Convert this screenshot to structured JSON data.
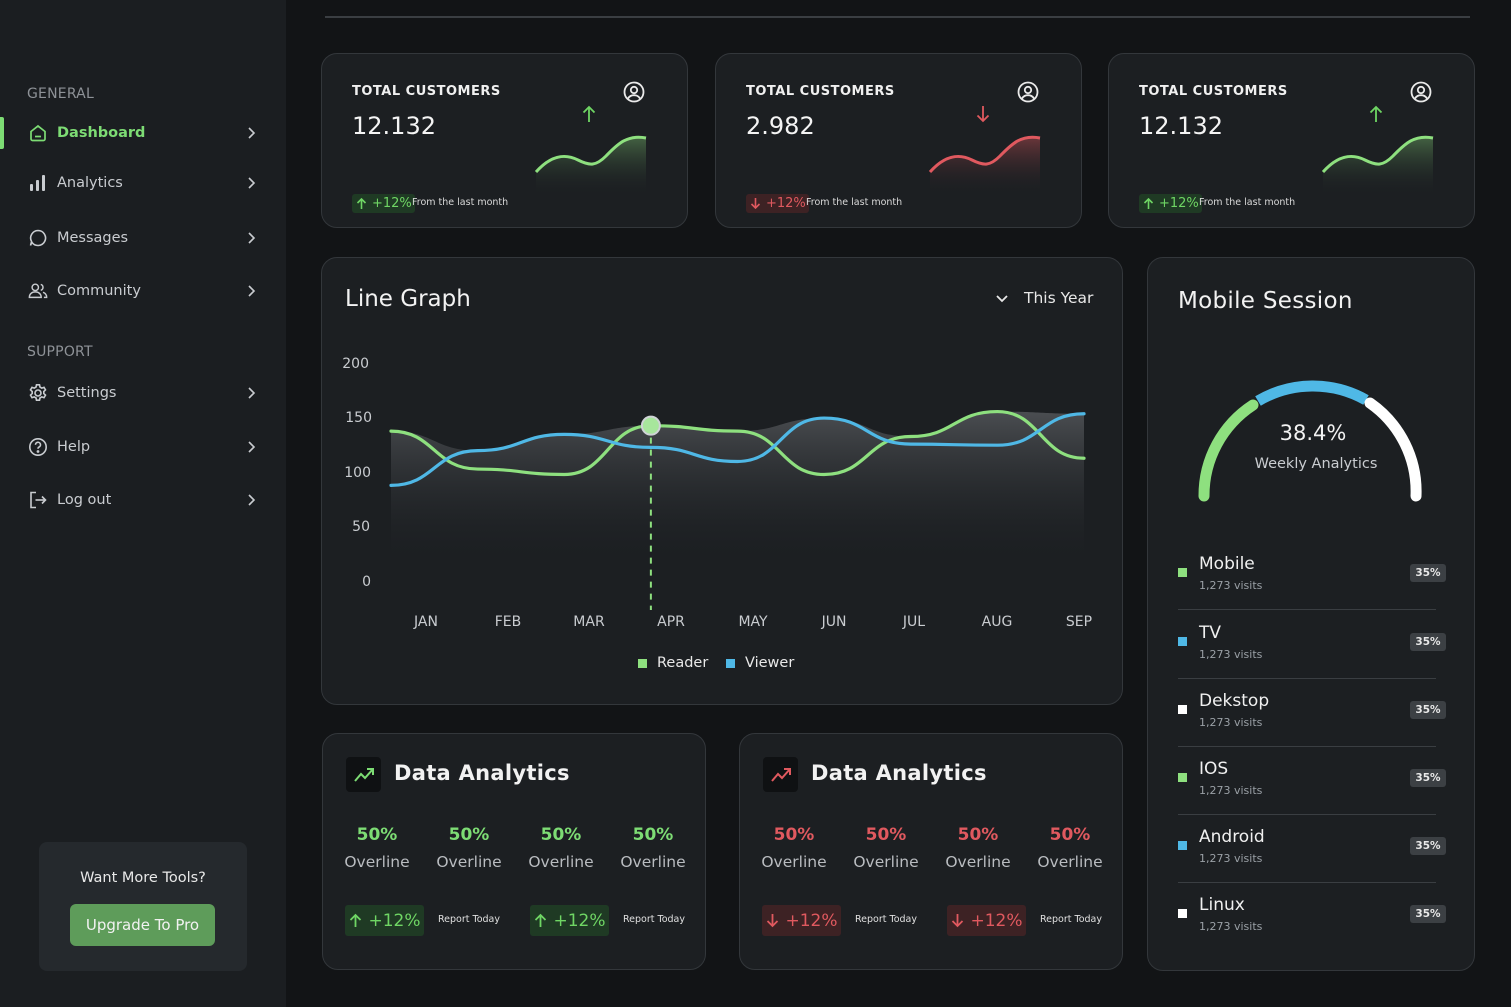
{
  "sidebar": {
    "general_label": "GENERAL",
    "support_label": "SUPPORT",
    "items": [
      {
        "label": "Dashboard",
        "icon": "home-icon"
      },
      {
        "label": "Analytics",
        "icon": "bar-chart-icon"
      },
      {
        "label": "Messages",
        "icon": "chat-icon"
      },
      {
        "label": "Community",
        "icon": "users-icon"
      },
      {
        "label": "Settings",
        "icon": "gear-icon"
      },
      {
        "label": "Help",
        "icon": "help-icon"
      },
      {
        "label": "Log out",
        "icon": "logout-icon"
      }
    ],
    "promo": {
      "title": "Want More Tools?",
      "button": "Upgrade To Pro"
    }
  },
  "stats": [
    {
      "title": "TOTAL CUSTOMERS",
      "value": "12.132",
      "change": "+12%",
      "note": "From the last month",
      "trend": "up"
    },
    {
      "title": "TOTAL CUSTOMERS",
      "value": "2.982",
      "change": "+12%",
      "note": "From the last month",
      "trend": "down"
    },
    {
      "title": "TOTAL CUSTOMERS",
      "value": "12.132",
      "change": "+12%",
      "note": "From the last month",
      "trend": "up"
    }
  ],
  "line_graph": {
    "title": "Line Graph",
    "period": "This Year"
  },
  "chart_data": {
    "type": "line",
    "x": [
      "JAN",
      "FEB",
      "MAR",
      "APR",
      "MAY",
      "JUN",
      "JUL",
      "AUG",
      "SEP"
    ],
    "yticks": [
      200,
      150,
      100,
      50,
      0
    ],
    "ylim": [
      0,
      200
    ],
    "series": [
      {
        "name": "Reader",
        "color": "#8ee07f",
        "values": [
          140,
          105,
          100,
          145,
          140,
          100,
          135,
          158,
          115
        ]
      },
      {
        "name": "Viewer",
        "color": "#4fb8e6",
        "values": [
          90,
          122,
          137,
          125,
          112,
          152,
          128,
          127,
          156
        ]
      }
    ],
    "highlight_index": 3,
    "grid": false,
    "legend": "bottom"
  },
  "mobile_session": {
    "title": "Mobile Session",
    "gauge_value": "38.4%",
    "gauge_label": "Weekly Analytics",
    "items": [
      {
        "name": "Mobile",
        "visits": "1,273 visits",
        "pct": "35%",
        "color": "#8ee07f"
      },
      {
        "name": "TV",
        "visits": "1,273 visits",
        "pct": "35%",
        "color": "#4fb8e6"
      },
      {
        "name": "Dekstop",
        "visits": "1,273 visits",
        "pct": "35%",
        "color": "#ffffff"
      },
      {
        "name": "IOS",
        "visits": "1,273 visits",
        "pct": "35%",
        "color": "#8ee07f"
      },
      {
        "name": "Android",
        "visits": "1,273 visits",
        "pct": "35%",
        "color": "#4fb8e6"
      },
      {
        "name": "Linux",
        "visits": "1,273 visits",
        "pct": "35%",
        "color": "#ffffff"
      }
    ]
  },
  "data_analytics": [
    {
      "title": "Data Analytics",
      "trend": "up",
      "accent": "#7ddc74",
      "metrics": [
        {
          "pct": "50%",
          "label": "Overline"
        },
        {
          "pct": "50%",
          "label": "Overline"
        },
        {
          "pct": "50%",
          "label": "Overline"
        },
        {
          "pct": "50%",
          "label": "Overline"
        }
      ],
      "reports": [
        {
          "change": "+12%",
          "note": "Report Today"
        },
        {
          "change": "+12%",
          "note": "Report Today"
        }
      ]
    },
    {
      "title": "Data Analytics",
      "trend": "down",
      "accent": "#e0595f",
      "metrics": [
        {
          "pct": "50%",
          "label": "Overline"
        },
        {
          "pct": "50%",
          "label": "Overline"
        },
        {
          "pct": "50%",
          "label": "Overline"
        },
        {
          "pct": "50%",
          "label": "Overline"
        }
      ],
      "reports": [
        {
          "change": "+12%",
          "note": "Report Today"
        },
        {
          "change": "+12%",
          "note": "Report Today"
        }
      ]
    }
  ]
}
